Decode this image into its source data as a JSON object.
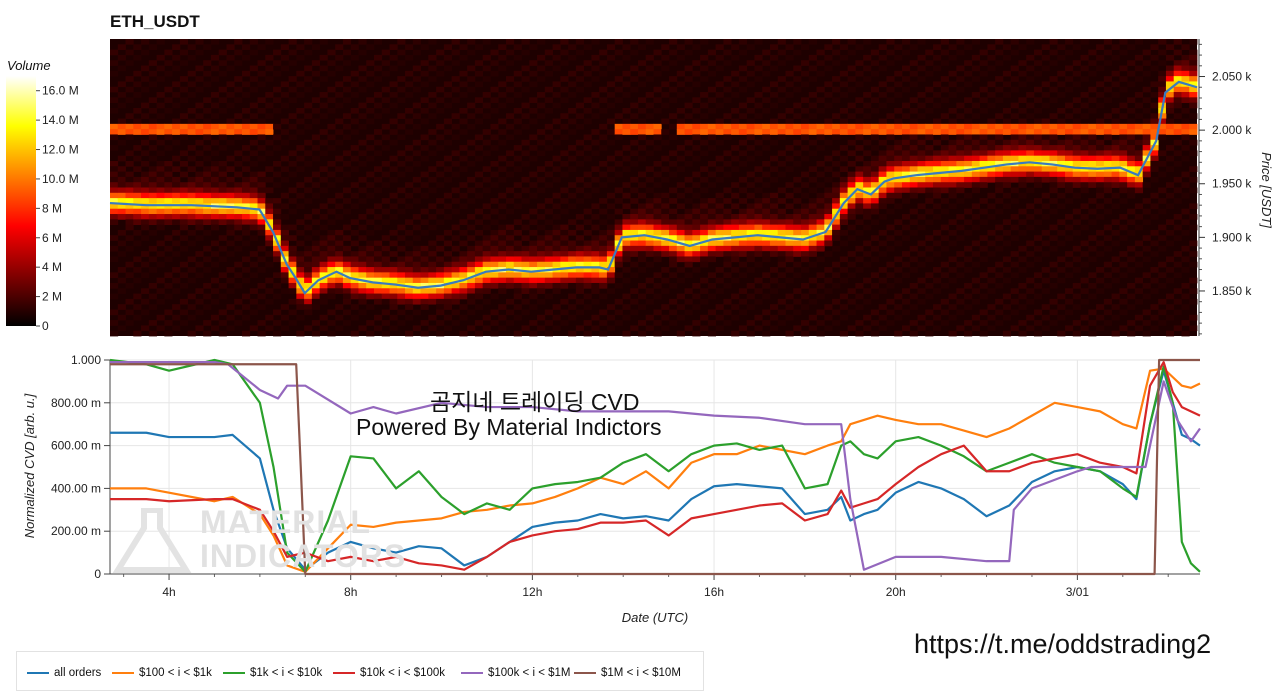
{
  "title": "ETH_USDT",
  "colorbar": {
    "label": "Volume",
    "ticks": [
      "16.0 M",
      "14.0 M",
      "12.0 M",
      "10.0 M",
      "8 M",
      "6 M",
      "4 M",
      "2 M",
      "0"
    ],
    "tick_values": [
      16,
      14,
      12,
      10,
      8,
      6,
      4,
      2,
      0
    ],
    "max": 17
  },
  "overlay": {
    "line1": "곰지네 트레이딩 CVD",
    "line2": "Powered By Material Indictors"
  },
  "watermark": {
    "line1": "MATERIAL",
    "line2": "INDICATORS"
  },
  "link": "https://t.me/oddstrading2",
  "chart_data": [
    {
      "type": "heatmap",
      "ylabel": "Price [USDT]",
      "y_ticks": [
        "2.050 k",
        "2.000 k",
        "1.950 k",
        "1.900 k",
        "1.850 k"
      ],
      "y_tick_values": [
        2050,
        2000,
        1950,
        1900,
        1850
      ],
      "ylim": [
        1808,
        2085
      ],
      "xlim": [
        2.7,
        26.7
      ],
      "series": [
        {
          "color": "#3a7bbf",
          "x": [
            2.7,
            3.5,
            4.5,
            5.5,
            6.0,
            6.3,
            6.6,
            6.8,
            7.0,
            7.3,
            7.7,
            8.0,
            8.5,
            9.0,
            9.5,
            10.0,
            10.5,
            11.0,
            11.5,
            12.0,
            12.5,
            13.0,
            13.5,
            13.7,
            14.0,
            14.5,
            15.0,
            15.5,
            16.0,
            16.5,
            17.0,
            17.5,
            18.0,
            18.5,
            18.9,
            19.2,
            19.5,
            19.8,
            20.0,
            20.5,
            21.0,
            21.5,
            22.0,
            22.5,
            23.0,
            23.5,
            24.0,
            24.5,
            25.0,
            25.4,
            25.8,
            26.0,
            26.3,
            26.7
          ],
          "y": [
            1932,
            1930,
            1930,
            1928,
            1926,
            1905,
            1875,
            1862,
            1848,
            1860,
            1868,
            1862,
            1858,
            1856,
            1853,
            1855,
            1860,
            1868,
            1870,
            1868,
            1870,
            1872,
            1872,
            1870,
            1900,
            1902,
            1898,
            1892,
            1898,
            1900,
            1902,
            1900,
            1898,
            1905,
            1932,
            1945,
            1940,
            1952,
            1955,
            1958,
            1960,
            1962,
            1965,
            1968,
            1970,
            1968,
            1965,
            1964,
            1965,
            1958,
            1990,
            2035,
            2045,
            2040
          ]
        }
      ]
    },
    {
      "type": "line",
      "xlabel": "Date (UTC)",
      "ylabel": "Normalized CVD [arb. u.]",
      "x_ticks": [
        "4h",
        "8h",
        "12h",
        "16h",
        "20h",
        "3/01"
      ],
      "x_tick_values": [
        4,
        8,
        12,
        16,
        20,
        24
      ],
      "xlim": [
        2.7,
        26.7
      ],
      "y_ticks": [
        "1.000",
        "800.00 m",
        "600.00 m",
        "400.00 m",
        "200.00 m",
        "0"
      ],
      "y_tick_values": [
        1000,
        800,
        600,
        400,
        200,
        0
      ],
      "ylim": [
        0,
        1000
      ],
      "grid": true,
      "legend": "bottom-left",
      "series": [
        {
          "name": "all orders",
          "color": "#1f77b4",
          "x": [
            2.7,
            3.5,
            4.0,
            5.0,
            5.4,
            6.0,
            6.3,
            6.6,
            7.0,
            7.5,
            8.0,
            8.5,
            9.0,
            9.5,
            10.0,
            10.5,
            11.0,
            11.5,
            12.0,
            12.5,
            13.0,
            13.5,
            14.0,
            14.5,
            15.0,
            15.5,
            16.0,
            16.5,
            17.0,
            17.5,
            18.0,
            18.5,
            18.8,
            19.0,
            19.3,
            19.6,
            20.0,
            20.5,
            21.0,
            21.5,
            22.0,
            22.5,
            23.0,
            23.5,
            24.0,
            24.5,
            25.0,
            25.3,
            25.6,
            25.9,
            26.1,
            26.3,
            26.5,
            26.7
          ],
          "y": [
            660,
            660,
            640,
            640,
            650,
            540,
            300,
            120,
            20,
            100,
            150,
            120,
            100,
            130,
            120,
            40,
            80,
            150,
            220,
            240,
            250,
            280,
            260,
            270,
            250,
            350,
            410,
            420,
            410,
            400,
            280,
            300,
            360,
            250,
            280,
            300,
            380,
            430,
            400,
            350,
            270,
            320,
            430,
            480,
            500,
            480,
            420,
            350,
            700,
            950,
            800,
            650,
            630,
            600
          ]
        },
        {
          "name": "$100 < i < $1k",
          "color": "#ff7f0e",
          "x": [
            2.7,
            3.5,
            4.0,
            5.0,
            5.4,
            6.0,
            6.3,
            6.6,
            7.0,
            7.5,
            8.0,
            8.5,
            9.0,
            9.5,
            10.0,
            10.5,
            11.0,
            11.5,
            12.0,
            12.5,
            13.0,
            13.5,
            14.0,
            14.5,
            15.0,
            15.5,
            16.0,
            16.5,
            17.0,
            17.5,
            18.0,
            18.5,
            18.8,
            19.0,
            19.3,
            19.6,
            20.0,
            20.5,
            21.0,
            21.5,
            22.0,
            22.5,
            23.0,
            23.5,
            24.0,
            24.5,
            25.0,
            25.3,
            25.6,
            25.9,
            26.1,
            26.3,
            26.5,
            26.7
          ],
          "y": [
            400,
            400,
            380,
            340,
            360,
            280,
            180,
            40,
            10,
            120,
            230,
            220,
            240,
            250,
            260,
            290,
            300,
            320,
            330,
            360,
            400,
            450,
            420,
            480,
            400,
            520,
            560,
            560,
            600,
            580,
            560,
            600,
            620,
            700,
            720,
            740,
            720,
            700,
            700,
            670,
            640,
            680,
            740,
            800,
            780,
            760,
            700,
            680,
            950,
            960,
            920,
            880,
            870,
            890
          ]
        },
        {
          "name": "$1k < i < $10k",
          "color": "#2ca02c",
          "x": [
            2.7,
            3.5,
            4.0,
            5.0,
            5.4,
            6.0,
            6.3,
            6.6,
            7.0,
            7.5,
            8.0,
            8.5,
            9.0,
            9.5,
            10.0,
            10.5,
            11.0,
            11.5,
            12.0,
            12.5,
            13.0,
            13.5,
            14.0,
            14.5,
            15.0,
            15.5,
            16.0,
            16.5,
            17.0,
            17.5,
            18.0,
            18.5,
            18.8,
            19.0,
            19.3,
            19.6,
            20.0,
            20.5,
            21.0,
            21.5,
            22.0,
            22.5,
            23.0,
            23.5,
            24.0,
            24.5,
            25.0,
            25.3,
            25.6,
            25.9,
            26.1,
            26.3,
            26.5,
            26.7
          ],
          "y": [
            1000,
            980,
            950,
            1000,
            980,
            800,
            500,
            100,
            10,
            250,
            550,
            540,
            400,
            480,
            360,
            280,
            330,
            300,
            400,
            420,
            430,
            450,
            520,
            560,
            480,
            560,
            600,
            610,
            580,
            600,
            400,
            420,
            600,
            620,
            560,
            540,
            620,
            640,
            600,
            550,
            480,
            520,
            560,
            520,
            500,
            480,
            400,
            360,
            700,
            970,
            800,
            150,
            50,
            10
          ]
        },
        {
          "name": "$10k < i < $100k",
          "color": "#d62728",
          "x": [
            2.7,
            3.5,
            4.0,
            5.0,
            5.4,
            6.0,
            6.3,
            6.6,
            7.0,
            7.5,
            8.0,
            8.5,
            9.0,
            9.5,
            10.0,
            10.5,
            11.0,
            11.5,
            12.0,
            12.5,
            13.0,
            13.5,
            14.0,
            14.5,
            15.0,
            15.5,
            16.0,
            16.5,
            17.0,
            17.5,
            18.0,
            18.5,
            18.8,
            19.0,
            19.3,
            19.6,
            20.0,
            20.5,
            21.0,
            21.5,
            22.0,
            22.5,
            23.0,
            23.5,
            24.0,
            24.5,
            25.0,
            25.3,
            25.6,
            25.9,
            26.1,
            26.3,
            26.5,
            26.7
          ],
          "y": [
            350,
            350,
            340,
            350,
            350,
            300,
            200,
            80,
            100,
            60,
            80,
            60,
            80,
            50,
            40,
            20,
            80,
            150,
            180,
            200,
            210,
            240,
            240,
            250,
            180,
            260,
            280,
            300,
            320,
            330,
            250,
            280,
            390,
            310,
            330,
            350,
            420,
            500,
            560,
            600,
            480,
            480,
            520,
            540,
            560,
            520,
            500,
            470,
            880,
            990,
            850,
            780,
            760,
            740
          ]
        },
        {
          "name": "$100k < i < $1M",
          "color": "#9467bd",
          "x": [
            2.7,
            4.0,
            5.0,
            5.3,
            6.0,
            6.4,
            6.6,
            7.0,
            8.0,
            8.5,
            9.0,
            10.0,
            11.0,
            12.0,
            13.0,
            14.0,
            15.0,
            16.0,
            17.0,
            18.0,
            18.8,
            19.0,
            19.3,
            20.0,
            21.0,
            22.0,
            22.5,
            22.6,
            23.0,
            24.0,
            24.3,
            25.0,
            25.5,
            25.9,
            26.2,
            26.5,
            26.7
          ],
          "y": [
            990,
            990,
            990,
            980,
            860,
            820,
            880,
            880,
            750,
            780,
            750,
            800,
            780,
            780,
            760,
            760,
            760,
            740,
            730,
            700,
            700,
            350,
            20,
            80,
            80,
            60,
            60,
            300,
            400,
            480,
            500,
            500,
            500,
            900,
            720,
            620,
            680
          ]
        },
        {
          "name": "$1M < i < $10M",
          "color": "#8c564b",
          "x": [
            2.7,
            4.0,
            5.0,
            6.0,
            6.5,
            6.8,
            6.9,
            7.0,
            10.0,
            14.0,
            18.0,
            22.0,
            25.7,
            25.8,
            26.0,
            26.4,
            26.7
          ],
          "y": [
            980,
            980,
            980,
            980,
            980,
            980,
            500,
            0,
            0,
            0,
            0,
            0,
            0,
            1000,
            1000,
            1000,
            1000
          ]
        }
      ]
    }
  ]
}
